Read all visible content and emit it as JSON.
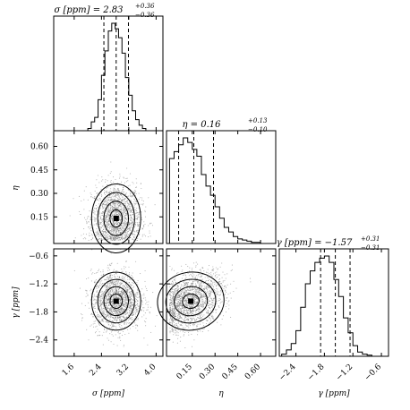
{
  "chart_data": [
    {
      "type": "histogram",
      "panel": "sigma-marginal",
      "title_param": "σ [ppm]",
      "title_value": "2.83",
      "title_plus": "+0.36",
      "title_minus": "−0.36",
      "bins": [
        1.9,
        2.0,
        2.1,
        2.2,
        2.3,
        2.4,
        2.5,
        2.6,
        2.7,
        2.8,
        2.9,
        3.0,
        3.1,
        3.2,
        3.3,
        3.4,
        3.5,
        3.6,
        3.7
      ],
      "counts": [
        0,
        2,
        8,
        12,
        28,
        50,
        72,
        90,
        97,
        92,
        84,
        70,
        48,
        32,
        18,
        10,
        5,
        2
      ],
      "quantiles": [
        2.47,
        2.83,
        3.19
      ],
      "xlim": [
        1.0,
        4.2
      ]
    },
    {
      "type": "histogram",
      "panel": "eta-marginal",
      "title_param": "η",
      "title_value": "0.16",
      "title_plus": "+0.13",
      "title_minus": "−0.10",
      "bins": [
        0.0,
        0.03,
        0.06,
        0.09,
        0.12,
        0.15,
        0.18,
        0.21,
        0.24,
        0.27,
        0.3,
        0.33,
        0.36,
        0.39,
        0.42,
        0.45,
        0.48,
        0.51,
        0.54,
        0.57,
        0.6,
        0.63
      ],
      "counts": [
        74,
        80,
        86,
        92,
        88,
        82,
        76,
        60,
        50,
        42,
        32,
        22,
        14,
        10,
        6,
        4,
        3,
        2,
        1,
        1,
        0
      ],
      "quantiles": [
        0.06,
        0.16,
        0.29
      ],
      "xlim": [
        -0.02,
        0.7
      ]
    },
    {
      "type": "histogram",
      "panel": "gamma-marginal",
      "title_param": "γ [ppm]",
      "title_value": "−1.57",
      "title_plus": "+0.31",
      "title_minus": "−0.31",
      "bins": [
        -2.7,
        -2.6,
        -2.5,
        -2.4,
        -2.3,
        -2.2,
        -2.1,
        -2.0,
        -1.9,
        -1.8,
        -1.7,
        -1.6,
        -1.5,
        -1.4,
        -1.3,
        -1.2,
        -1.1,
        -1.0,
        -0.9,
        -0.8
      ],
      "counts": [
        2,
        6,
        12,
        24,
        46,
        68,
        80,
        88,
        92,
        94,
        88,
        72,
        56,
        36,
        22,
        10,
        4,
        2,
        1
      ],
      "quantiles": [
        -1.88,
        -1.57,
        -1.26
      ],
      "xlim": [
        -2.75,
        -0.45
      ]
    },
    {
      "type": "scatter-contour",
      "panel": "eta-vs-sigma",
      "x_param": "σ",
      "y_param": "η",
      "center": [
        2.83,
        0.14
      ],
      "spread": [
        0.36,
        0.11
      ],
      "corr": 0.0,
      "xlim": [
        1.0,
        4.2
      ],
      "ylim": [
        -0.02,
        0.7
      ]
    },
    {
      "type": "scatter-contour",
      "panel": "gamma-vs-sigma",
      "x_param": "σ",
      "y_param": "γ",
      "center": [
        2.83,
        -1.57
      ],
      "spread": [
        0.36,
        0.31
      ],
      "corr": 0.0,
      "xlim": [
        1.0,
        4.2
      ],
      "ylim": [
        -2.75,
        -0.45
      ]
    },
    {
      "type": "scatter-contour",
      "panel": "gamma-vs-eta",
      "x_param": "η",
      "y_param": "γ",
      "center": [
        0.14,
        -1.57
      ],
      "spread": [
        0.11,
        0.31
      ],
      "corr": 0.35,
      "xlim": [
        -0.02,
        0.7
      ],
      "ylim": [
        -2.75,
        -0.45
      ]
    }
  ],
  "axes": {
    "sigma_label": "σ [ppm]",
    "eta_label": "η",
    "gamma_label": "γ [ppm]",
    "sigma_ticks": [
      "1.6",
      "2.4",
      "3.2",
      "4.0"
    ],
    "sigma_tick_values": [
      1.6,
      2.4,
      3.2,
      4.0
    ],
    "eta_ticks": [
      "0.15",
      "0.30",
      "0.45",
      "0.60"
    ],
    "eta_tick_values": [
      0.15,
      0.3,
      0.45,
      0.6
    ],
    "gamma_ticks": [
      "−2.4",
      "−1.8",
      "−1.2",
      "−0.6"
    ],
    "gamma_tick_values": [
      -2.4,
      -1.8,
      -1.2,
      -0.6
    ]
  }
}
